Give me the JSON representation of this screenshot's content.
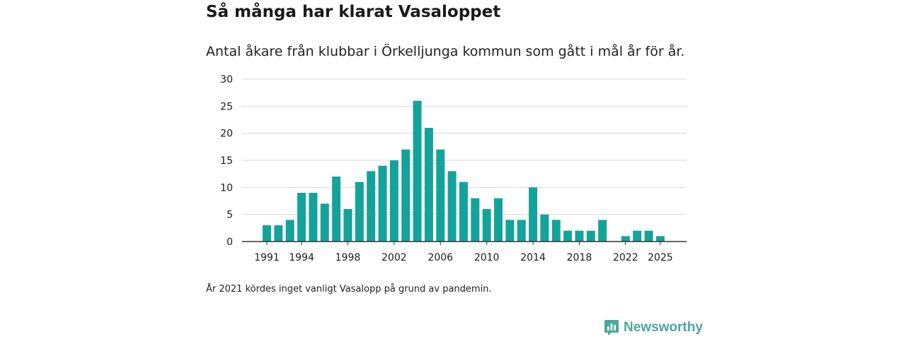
{
  "title": "Så många har klarat Vasaloppet",
  "subtitle": "Antal åkare från klubbar i Örkelljunga kommun som gått i mål år för år.",
  "footnote": "År 2021 kördes inget vanligt Vasalopp på grund av pandemin.",
  "brand": {
    "name": "Newsworthy",
    "icon": "newsworthy-logo-icon",
    "color": "#4aa89e"
  },
  "colors": {
    "bar": "#14a39a",
    "grid": "#d9d9d9",
    "axis": "#333333"
  },
  "chart_data": {
    "type": "bar",
    "title": "Så många har klarat Vasaloppet",
    "xlabel": "",
    "ylabel": "",
    "ylim": [
      0,
      30
    ],
    "yticks": [
      0,
      5,
      10,
      15,
      20,
      25,
      30
    ],
    "xtick_labels": [
      "1991",
      "1994",
      "1998",
      "2002",
      "2006",
      "2010",
      "2014",
      "2018",
      "2022",
      "2025"
    ],
    "categories": [
      "1991",
      "1992",
      "1993",
      "1994",
      "1995",
      "1996",
      "1997",
      "1998",
      "1999",
      "2000",
      "2001",
      "2002",
      "2003",
      "2004",
      "2005",
      "2006",
      "2007",
      "2008",
      "2009",
      "2010",
      "2011",
      "2012",
      "2013",
      "2014",
      "2015",
      "2016",
      "2017",
      "2018",
      "2019",
      "2020",
      "2021",
      "2022",
      "2023",
      "2024",
      "2025"
    ],
    "values": [
      3,
      3,
      4,
      9,
      9,
      7,
      12,
      6,
      11,
      13,
      14,
      15,
      17,
      26,
      21,
      17,
      13,
      11,
      8,
      6,
      8,
      4,
      4,
      10,
      5,
      4,
      2,
      2,
      2,
      4,
      null,
      1,
      2,
      2,
      1
    ],
    "grid": true
  }
}
